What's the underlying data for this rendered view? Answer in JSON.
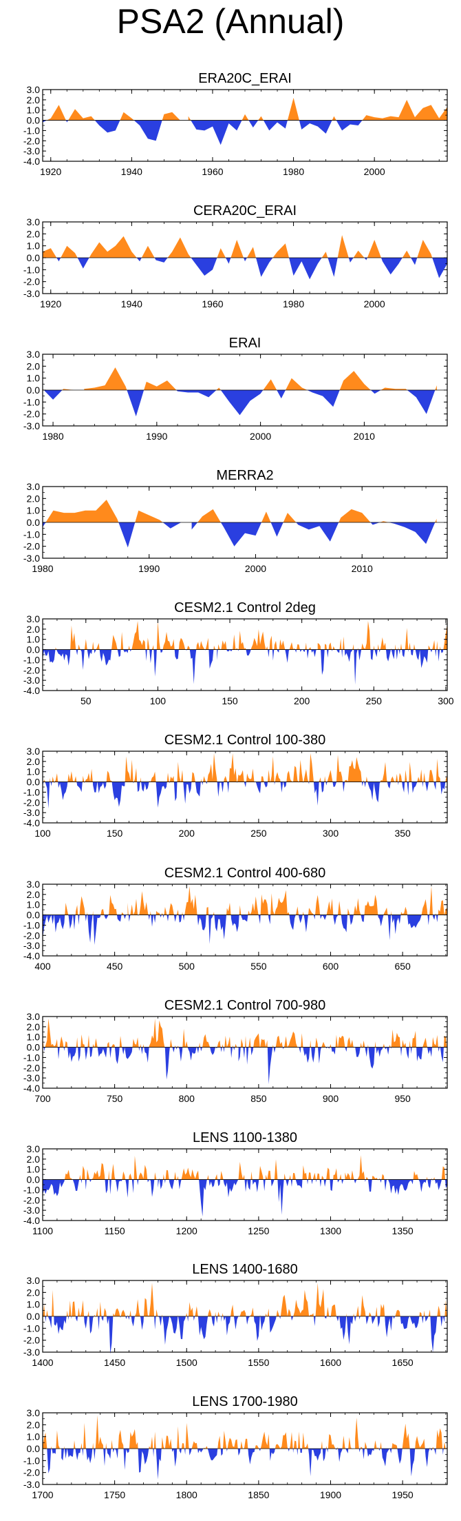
{
  "title": "PSA2 (Annual)",
  "colors": {
    "positive": "#ff8a1c",
    "negative": "#2a3fe0",
    "axis": "#000000"
  },
  "chart_data": [
    {
      "type": "area",
      "title": "ERA20C_ERAI",
      "xlim": [
        1918,
        2018
      ],
      "ylim": [
        -4.0,
        3.0
      ],
      "yticks": [
        "3.0",
        "2.0",
        "1.0",
        "0.0",
        "-1.0",
        "-2.0",
        "-3.0",
        "-4.0"
      ],
      "xticks": [
        1920,
        1940,
        1960,
        1980,
        2000
      ],
      "x": [
        1918,
        1920,
        1922,
        1924,
        1926,
        1928,
        1930,
        1932,
        1934,
        1936,
        1938,
        1940,
        1942,
        1944,
        1946,
        1948,
        1950,
        1952,
        1954,
        1956,
        1958,
        1960,
        1962,
        1964,
        1966,
        1968,
        1970,
        1972,
        1974,
        1976,
        1978,
        1980,
        1982,
        1984,
        1986,
        1988,
        1990,
        1992,
        1994,
        1996,
        1998,
        2000,
        2002,
        2004,
        2006,
        2008,
        2010,
        2012,
        2014,
        2016,
        2018
      ],
      "values": [
        -0.2,
        0.2,
        1.5,
        -0.2,
        1.1,
        0.2,
        0.4,
        -0.5,
        -1.2,
        -1.0,
        0.8,
        0.2,
        -0.5,
        -1.8,
        -2.0,
        0.6,
        0.8,
        0.0,
        0.4,
        -0.9,
        -1.0,
        -0.6,
        -2.4,
        -0.3,
        -1.0,
        0.6,
        -0.7,
        0.4,
        -1.0,
        -0.2,
        -0.8,
        2.2,
        -0.9,
        -0.3,
        -0.6,
        -1.3,
        0.4,
        -1.0,
        -0.4,
        -0.5,
        0.5,
        0.3,
        0.2,
        0.4,
        0.3,
        2.0,
        0.3,
        1.2,
        1.5,
        0.2,
        1.3
      ]
    },
    {
      "type": "area",
      "title": "CERA20C_ERAI",
      "xlim": [
        1918,
        2018
      ],
      "ylim": [
        -3.0,
        3.0
      ],
      "yticks": [
        "3.0",
        "2.0",
        "1.0",
        "0.0",
        "-1.0",
        "-2.0",
        "-3.0"
      ],
      "xticks": [
        1920,
        1940,
        1960,
        1980,
        2000
      ],
      "x": [
        1918,
        1920,
        1922,
        1924,
        1926,
        1928,
        1930,
        1932,
        1934,
        1936,
        1938,
        1940,
        1942,
        1944,
        1946,
        1948,
        1950,
        1952,
        1954,
        1956,
        1958,
        1960,
        1962,
        1964,
        1966,
        1968,
        1970,
        1972,
        1974,
        1976,
        1978,
        1980,
        1982,
        1984,
        1986,
        1988,
        1990,
        1992,
        1994,
        1996,
        1998,
        2000,
        2002,
        2004,
        2006,
        2008,
        2010,
        2012,
        2014,
        2016,
        2018
      ],
      "values": [
        0.5,
        0.8,
        -0.3,
        1.0,
        0.4,
        -0.9,
        0.3,
        1.3,
        0.5,
        1.0,
        1.8,
        0.5,
        -0.3,
        1.0,
        -0.2,
        -0.4,
        0.5,
        1.7,
        0.3,
        -0.6,
        -1.5,
        -1.0,
        0.8,
        -0.5,
        1.5,
        -0.3,
        0.9,
        -1.6,
        -0.4,
        0.5,
        1.2,
        -1.5,
        -0.3,
        -1.8,
        -0.5,
        0.5,
        -1.6,
        1.9,
        -0.4,
        0.6,
        -0.2,
        1.5,
        -0.3,
        -1.4,
        -0.5,
        0.6,
        -0.6,
        1.5,
        0.3,
        -1.7,
        -0.5
      ]
    },
    {
      "type": "area",
      "title": "ERAI",
      "xlim": [
        1979,
        2018
      ],
      "ylim": [
        -3.0,
        3.0
      ],
      "yticks": [
        "3.0",
        "2.0",
        "1.0",
        "0.0",
        "-1.0",
        "-2.0",
        "-3.0"
      ],
      "xticks": [
        1980,
        1990,
        2000,
        2010
      ],
      "x": [
        1979,
        1980,
        1981,
        1982,
        1983,
        1984,
        1985,
        1986,
        1987,
        1988,
        1989,
        1990,
        1991,
        1992,
        1993,
        1994,
        1995,
        1996,
        1997,
        1998,
        1999,
        2000,
        2001,
        2002,
        2003,
        2004,
        2005,
        2006,
        2007,
        2008,
        2009,
        2010,
        2011,
        2012,
        2013,
        2014,
        2015,
        2016,
        2017
      ],
      "values": [
        0.1,
        -0.8,
        0.1,
        0.0,
        0.1,
        0.2,
        0.4,
        1.9,
        0.3,
        -2.2,
        0.7,
        0.3,
        0.8,
        -0.1,
        -0.2,
        -0.2,
        -0.6,
        0.2,
        -1.0,
        -2.1,
        -0.9,
        -0.3,
        0.9,
        -0.7,
        1.0,
        0.2,
        -0.2,
        -0.5,
        -1.4,
        0.8,
        1.6,
        0.5,
        -0.3,
        0.2,
        0.1,
        0.1,
        -0.6,
        -2.0,
        0.4
      ]
    },
    {
      "type": "area",
      "title": "MERRA2",
      "xlim": [
        1980,
        2018
      ],
      "ylim": [
        -3.0,
        3.0
      ],
      "yticks": [
        "3.0",
        "2.0",
        "1.0",
        "0.0",
        "-1.0",
        "-2.0",
        "-3.0"
      ],
      "xticks": [
        1980,
        1990,
        2000,
        2010
      ],
      "x": [
        1980,
        1981,
        1982,
        1983,
        1984,
        1985,
        1986,
        1987,
        1988,
        1989,
        1990,
        1991,
        1992,
        1993,
        1994,
        1995,
        1996,
        1997,
        1998,
        1999,
        2000,
        2001,
        2002,
        2003,
        2004,
        2005,
        2006,
        2007,
        2008,
        2009,
        2010,
        2011,
        2012,
        2013,
        2014,
        2015,
        2016,
        2017
      ],
      "values": [
        -0.4,
        1.0,
        0.8,
        0.8,
        1.0,
        1.0,
        1.9,
        0.3,
        -2.1,
        1.0,
        0.6,
        0.2,
        -0.5,
        0.0,
        -0.6,
        0.5,
        1.1,
        -0.4,
        -2.0,
        -0.9,
        -1.1,
        0.9,
        -1.2,
        0.8,
        -0.2,
        -0.6,
        -0.3,
        -1.6,
        0.4,
        1.1,
        0.8,
        -0.2,
        0.1,
        -0.1,
        -0.4,
        -0.8,
        -1.8,
        0.3
      ]
    },
    {
      "type": "area",
      "title": "CESM2.1 Control 2deg",
      "xlim": [
        20,
        301
      ],
      "ylim": [
        -4.0,
        3.0
      ],
      "yticks": [
        "3.0",
        "2.0",
        "1.0",
        "0.0",
        "-1.0",
        "-2.0",
        "-3.0",
        "-4.0"
      ],
      "xticks": [
        50,
        100,
        150,
        200,
        250,
        300
      ],
      "random_series": {
        "n": 282,
        "seed": 11,
        "amplitude": 1.0
      }
    },
    {
      "type": "area",
      "title": "CESM2.1 Control 100-380",
      "xlim": [
        100,
        381
      ],
      "ylim": [
        -4.0,
        3.0
      ],
      "yticks": [
        "3.0",
        "2.0",
        "1.0",
        "0.0",
        "-1.0",
        "-2.0",
        "-3.0",
        "-4.0"
      ],
      "xticks": [
        100,
        150,
        200,
        250,
        300,
        350
      ],
      "random_series": {
        "n": 282,
        "seed": 23,
        "amplitude": 1.0
      }
    },
    {
      "type": "area",
      "title": "CESM2.1 Control 400-680",
      "xlim": [
        400,
        681
      ],
      "ylim": [
        -4.0,
        3.0
      ],
      "yticks": [
        "3.0",
        "2.0",
        "1.0",
        "0.0",
        "-1.0",
        "-2.0",
        "-3.0",
        "-4.0"
      ],
      "xticks": [
        400,
        450,
        500,
        550,
        600,
        650
      ],
      "random_series": {
        "n": 282,
        "seed": 37,
        "amplitude": 1.0
      }
    },
    {
      "type": "area",
      "title": "CESM2.1 Control 700-980",
      "xlim": [
        700,
        981
      ],
      "ylim": [
        -4.0,
        3.0
      ],
      "yticks": [
        "3.0",
        "2.0",
        "1.0",
        "0.0",
        "-1.0",
        "-2.0",
        "-3.0",
        "-4.0"
      ],
      "xticks": [
        700,
        750,
        800,
        850,
        900,
        950
      ],
      "random_series": {
        "n": 282,
        "seed": 41,
        "amplitude": 1.0
      }
    },
    {
      "type": "area",
      "title": "LENS 1100-1380",
      "xlim": [
        1100,
        1381
      ],
      "ylim": [
        -4.0,
        3.0
      ],
      "yticks": [
        "3.0",
        "2.0",
        "1.0",
        "0.0",
        "-1.0",
        "-2.0",
        "-3.0",
        "-4.0"
      ],
      "xticks": [
        1100,
        1150,
        1200,
        1250,
        1300,
        1350
      ],
      "random_series": {
        "n": 282,
        "seed": 53,
        "amplitude": 1.0
      }
    },
    {
      "type": "area",
      "title": "LENS 1400-1680",
      "xlim": [
        1400,
        1681
      ],
      "ylim": [
        -3.0,
        3.0
      ],
      "yticks": [
        "3.0",
        "2.0",
        "1.0",
        "0.0",
        "-1.0",
        "-2.0",
        "-3.0"
      ],
      "xticks": [
        1400,
        1450,
        1500,
        1550,
        1600,
        1650
      ],
      "random_series": {
        "n": 282,
        "seed": 67,
        "amplitude": 0.95
      }
    },
    {
      "type": "area",
      "title": "LENS 1700-1980",
      "xlim": [
        1700,
        1981
      ],
      "ylim": [
        -3.0,
        3.0
      ],
      "yticks": [
        "3.0",
        "2.0",
        "1.0",
        "0.0",
        "-1.0",
        "-2.0",
        "-3.0"
      ],
      "xticks": [
        1700,
        1750,
        1800,
        1850,
        1900,
        1950
      ],
      "random_series": {
        "n": 282,
        "seed": 79,
        "amplitude": 0.95
      }
    }
  ]
}
